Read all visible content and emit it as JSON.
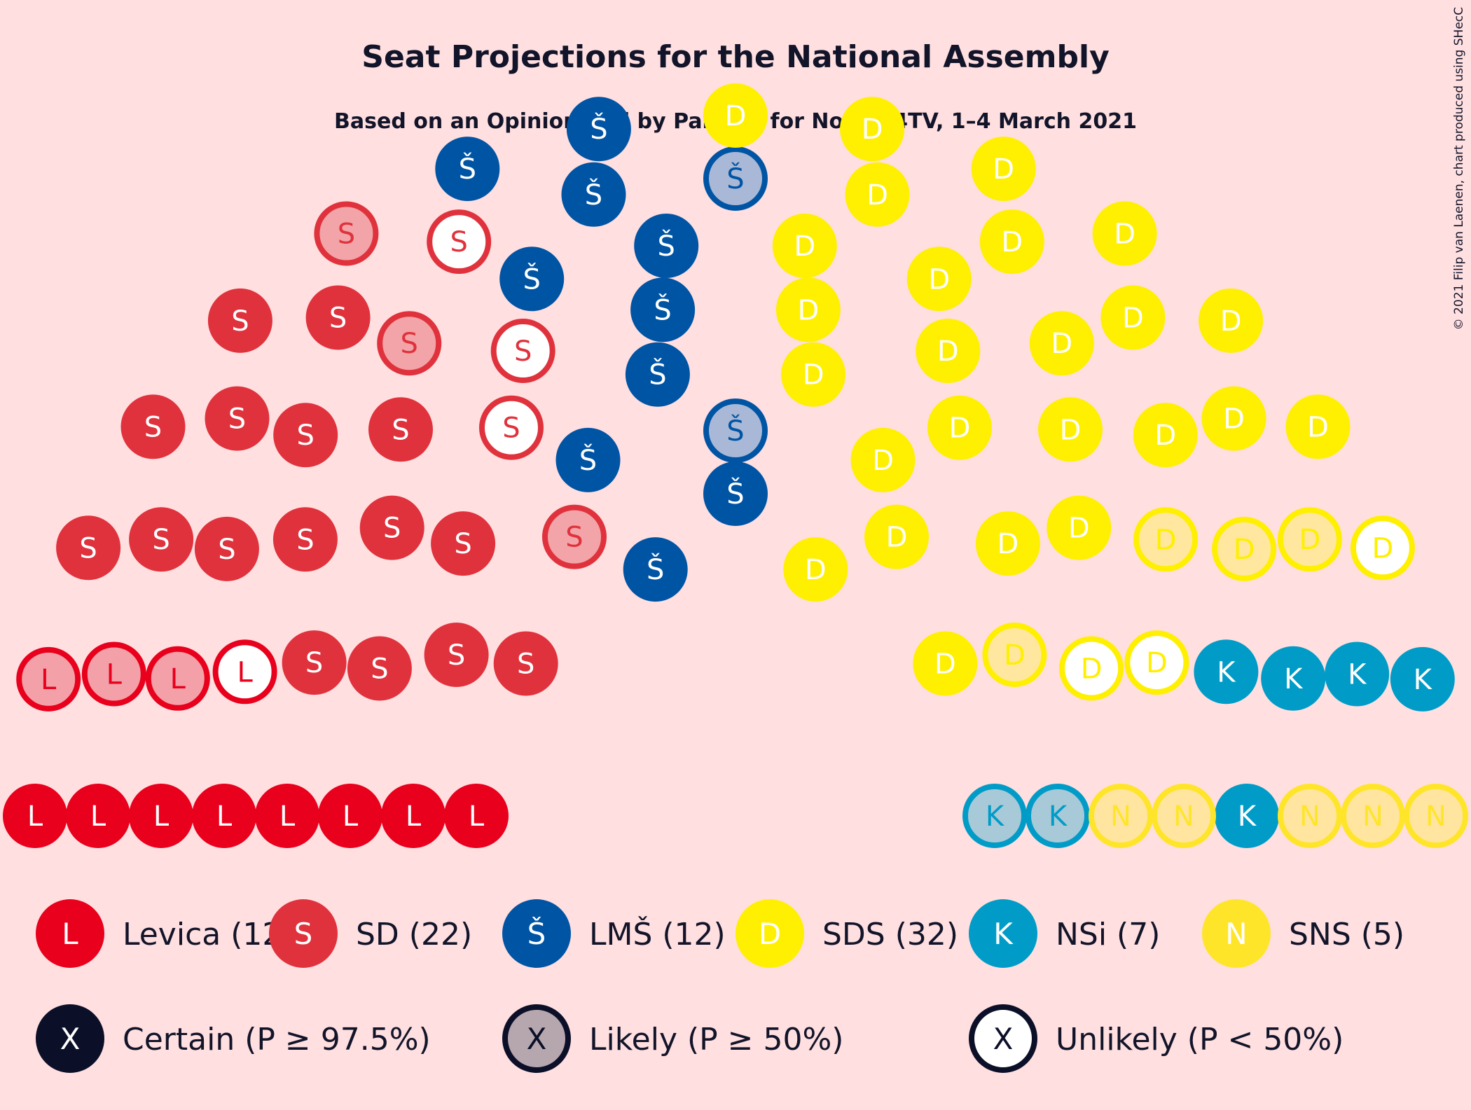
{
  "chart_data": {
    "type": "parliament",
    "title": "Seat Projections for the National Assembly",
    "subtitle": "Based on an Opinion Poll by Parsifal for Nova 24TV, 1–4 March 2021",
    "copyright": "© 2021 Filip van Laenen, chart produced using SHecC",
    "total_seats": 90,
    "parties": [
      {
        "key": "levica",
        "letter": "L",
        "label": "Levica (12)",
        "seats": 12,
        "color": "#e8001c",
        "light": "#f4a0a8",
        "certain": 8,
        "likely": 3,
        "unlikely": 1
      },
      {
        "key": "sd",
        "letter": "S",
        "label": "SD (22)",
        "seats": 22,
        "color": "#e0323c",
        "light": "#f2a4a8",
        "certain": 16,
        "likely": 3,
        "unlikely": 3
      },
      {
        "key": "lms",
        "letter": "Š",
        "label": "LMŠ (12)",
        "seats": 12,
        "color": "#0054a4",
        "light": "#a9b8d6",
        "certain": 10,
        "likely": 2,
        "unlikely": 0
      },
      {
        "key": "sds",
        "letter": "D",
        "label": "SDS (32)",
        "seats": 32,
        "color": "#ffef00",
        "light": "#ffe79f",
        "certain": 25,
        "likely": 4,
        "unlikely": 3
      },
      {
        "key": "nsi",
        "letter": "K",
        "label": "NSi (7)",
        "seats": 7,
        "color": "#009cc7",
        "light": "#a8c9d8",
        "certain": 5,
        "likely": 2,
        "unlikely": 0
      },
      {
        "key": "sns",
        "letter": "N",
        "label": "SNS (5)",
        "seats": 5,
        "color": "#ffe529",
        "light": "#ffe5a0",
        "certain": 0,
        "likely": 5,
        "unlikely": 0
      }
    ],
    "certainty_legend": [
      {
        "letter": "X",
        "label": "Certain (P ≥ 97.5%)",
        "style": "certain"
      },
      {
        "letter": "X",
        "label": "Likely (P ≥ 50%)",
        "style": "likely"
      },
      {
        "letter": "X",
        "label": "Unlikely (P < 50%)",
        "style": "unlikely"
      }
    ],
    "colors": {
      "background": "#ffdfe0",
      "dark": "#0b0f27",
      "likely_fill": "#b6a6ae"
    }
  }
}
